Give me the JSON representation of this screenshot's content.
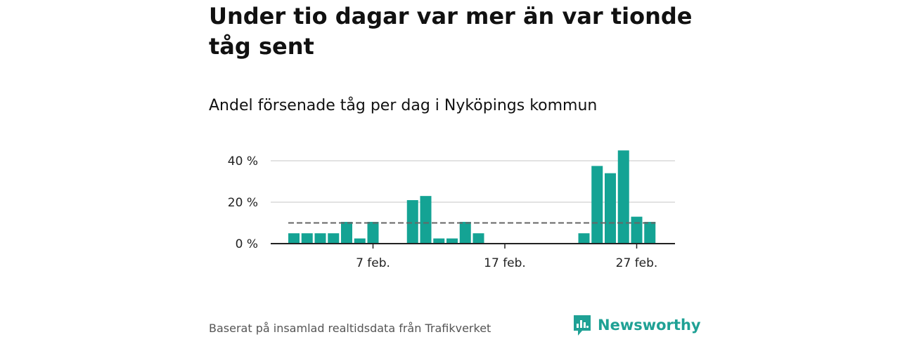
{
  "colors": {
    "bar": "#14a394",
    "brand": "#1fa195",
    "grid": "#d9d9d9",
    "axis": "#222222",
    "reference": "#666666"
  },
  "header": {
    "title": "Under tio dagar var mer än var tionde tåg sent",
    "subtitle": "Andel försenade tåg per dag i Nyköpings kommun"
  },
  "footer": {
    "source": "Baserat på insamlad realtidsdata från Trafikverket",
    "brand_name": "Newsworthy",
    "brand_icon": "newsworthy-logo-icon"
  },
  "chart_data": {
    "type": "bar",
    "x": [
      "1 feb.",
      "2 feb.",
      "3 feb.",
      "4 feb.",
      "5 feb.",
      "6 feb.",
      "7 feb.",
      "8 feb.",
      "9 feb.",
      "10 feb.",
      "11 feb.",
      "12 feb.",
      "13 feb.",
      "14 feb.",
      "15 feb.",
      "16 feb.",
      "17 feb.",
      "18 feb.",
      "19 feb.",
      "20 feb.",
      "21 feb.",
      "22 feb.",
      "23 feb.",
      "24 feb.",
      "25 feb.",
      "26 feb.",
      "27 feb.",
      "28 feb."
    ],
    "values": [
      5,
      5,
      5,
      5,
      10.5,
      2.5,
      10.5,
      0,
      0,
      21,
      23,
      2.5,
      2.5,
      10.5,
      5,
      0,
      0,
      0,
      0,
      0,
      0,
      0,
      5,
      37.5,
      34,
      45,
      13,
      10.5
    ],
    "reference_line": 10,
    "reference_style": "dashed",
    "ylim": [
      0,
      45
    ],
    "yticks": [
      0,
      20,
      40
    ],
    "ytick_labels": [
      "0 %",
      "20 %",
      "40 %"
    ],
    "xtick_labels": [
      "7 feb.",
      "17 feb.",
      "27 feb."
    ],
    "xtick_indices": [
      6,
      16,
      26
    ],
    "grid": true,
    "legend": "none"
  }
}
